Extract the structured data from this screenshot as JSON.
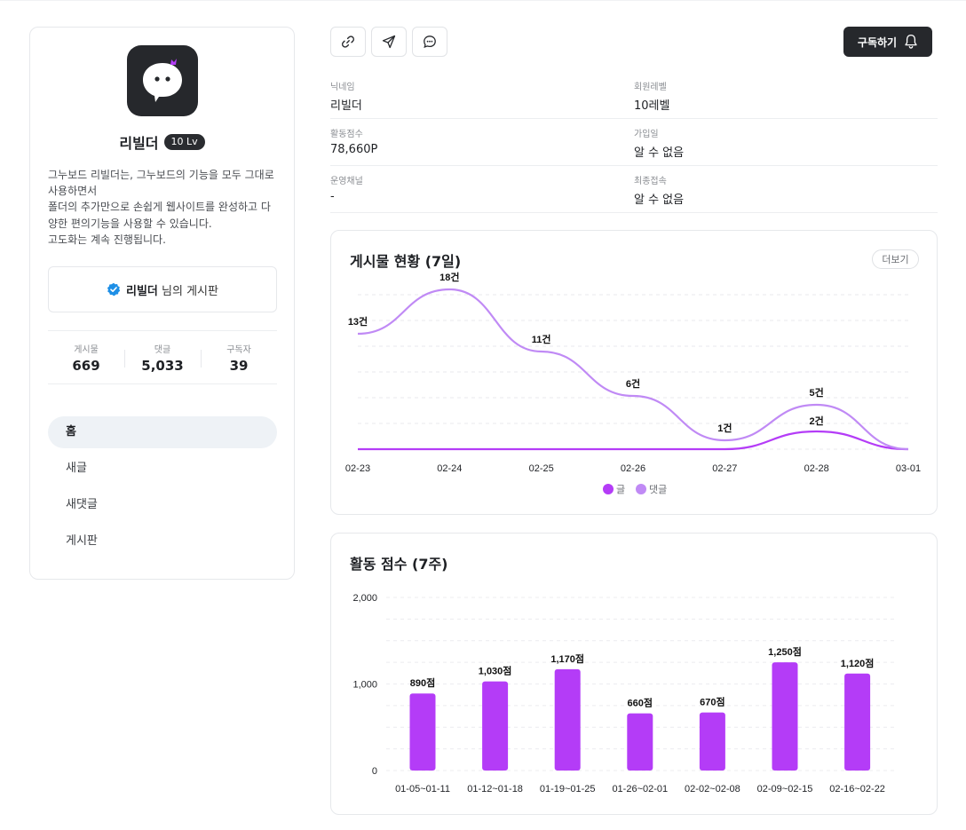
{
  "colors": {
    "accent": "#b43cf7",
    "accent_light": "#c08af5",
    "dark": "#26282c",
    "verified": "#1e8fe6"
  },
  "profile": {
    "name": "리빌더",
    "level": "10 Lv",
    "bio_lines": [
      "그누보드 리빌더는, 그누보드의 기능을 모두 그대로",
      "사용하면서",
      "폴더의 추가만으로 손쉽게 웹사이트를 완성하고 다",
      "양한 편의기능을 사용할 수 있습니다.",
      "고도화는 계속 진행됩니다."
    ],
    "board_owner": "리빌더",
    "board_suffix": "님의 게시판",
    "stats": [
      {
        "label": "게시물",
        "value": "669"
      },
      {
        "label": "댓글",
        "value": "5,033"
      },
      {
        "label": "구독자",
        "value": "39"
      }
    ],
    "nav": [
      "홈",
      "새글",
      "새댓글",
      "게시판"
    ]
  },
  "toolbar": {
    "icons": [
      "link-icon",
      "send-icon",
      "chat-icon"
    ],
    "subscribe_label": "구독하기"
  },
  "info": [
    {
      "label": "닉네임",
      "value": "리빌더"
    },
    {
      "label": "회원레벨",
      "value": "10레벨"
    },
    {
      "label": "활동점수",
      "value": "78,660P"
    },
    {
      "label": "가입일",
      "value": "알 수 없음"
    },
    {
      "label": "운영채널",
      "value": "-"
    },
    {
      "label": "최종접속",
      "value": "알 수 없음"
    }
  ],
  "posts_card": {
    "title": "게시물 현황 (7일)",
    "more_label": "더보기"
  },
  "score_card": {
    "title": "활동 점수 (7주)"
  },
  "chart_data": [
    {
      "type": "line",
      "title": "게시물 현황 (7일)",
      "x": [
        "02-23",
        "02-24",
        "02-25",
        "02-26",
        "02-27",
        "02-28",
        "03-01"
      ],
      "series": [
        {
          "name": "글",
          "values": [
            0,
            0,
            0,
            0,
            0,
            2,
            0
          ],
          "labels": [
            "",
            "",
            "",
            "",
            "",
            "2건",
            ""
          ]
        },
        {
          "name": "댓글",
          "values": [
            13,
            18,
            11,
            6,
            1,
            5,
            0
          ],
          "labels": [
            "13건",
            "18건",
            "11건",
            "6건",
            "1건",
            "5건",
            ""
          ]
        }
      ],
      "ylim": [
        0,
        20
      ],
      "grid": true,
      "legend": "bottom-center"
    },
    {
      "type": "bar",
      "title": "활동 점수 (7주)",
      "categories": [
        "01-05~01-11",
        "01-12~01-18",
        "01-19~01-25",
        "01-26~02-01",
        "02-02~02-08",
        "02-09~02-15",
        "02-16~02-22"
      ],
      "values": [
        890,
        1030,
        1170,
        660,
        670,
        1250,
        1120
      ],
      "labels": [
        "890점",
        "1,030점",
        "1,170점",
        "660점",
        "670점",
        "1,250점",
        "1,120점"
      ],
      "yticks": [
        "0",
        "1,000",
        "2,000"
      ],
      "ylim": [
        0,
        2000
      ],
      "grid": true
    }
  ]
}
